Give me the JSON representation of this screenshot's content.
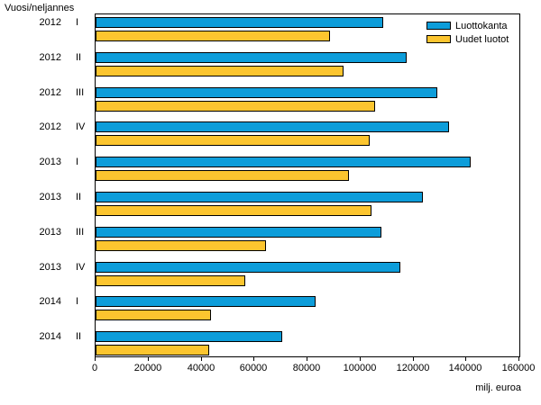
{
  "chart_data": {
    "type": "bar",
    "orientation": "horizontal",
    "title": "",
    "ylabel": "Vuosi/neljannes",
    "xlabel": "milj. euroa",
    "xlim": [
      0,
      160000
    ],
    "x_ticks": [
      0,
      20000,
      40000,
      60000,
      80000,
      100000,
      120000,
      140000,
      160000
    ],
    "grid": false,
    "legend_position": "top-right-inside",
    "categories": [
      "2012 I",
      "2012 II",
      "2012 III",
      "2012 IV",
      "2013 I",
      "2013 II",
      "2013 III",
      "2013 IV",
      "2014 I",
      "2014 II"
    ],
    "series": [
      {
        "name": "Luottokanta",
        "color": "#0d9dda",
        "values": [
          108500,
          117500,
          129000,
          133500,
          141500,
          123500,
          108000,
          115000,
          83000,
          70500
        ]
      },
      {
        "name": "Uudet luotot",
        "color": "#fcc52f",
        "values": [
          88500,
          93500,
          105500,
          103500,
          95500,
          104000,
          64500,
          56500,
          43500,
          43000
        ]
      }
    ]
  },
  "colors": {
    "bar_border": "#000000",
    "frame": "#000000",
    "background": "#ffffff",
    "text": "#000000"
  }
}
